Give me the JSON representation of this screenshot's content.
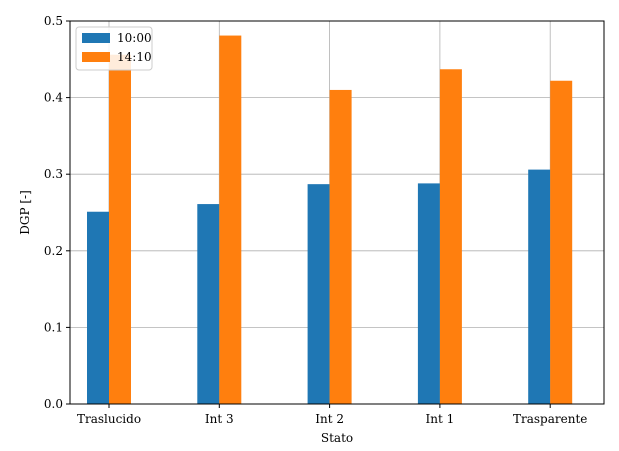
{
  "chart_data": {
    "type": "bar",
    "categories": [
      "Traslucido",
      "Int 3",
      "Int 2",
      "Int 1",
      "Trasparente"
    ],
    "series": [
      {
        "name": "10:00",
        "color": "#1f77b4",
        "values": [
          0.251,
          0.261,
          0.287,
          0.288,
          0.306
        ]
      },
      {
        "name": "14:10",
        "color": "#ff7f0e",
        "values": [
          0.456,
          0.481,
          0.41,
          0.437,
          0.422
        ]
      }
    ],
    "title": "",
    "xlabel": "Stato",
    "ylabel": "DGP [-]",
    "ylim": [
      0,
      0.5
    ],
    "yticks": [
      "0.0",
      "0.1",
      "0.2",
      "0.3",
      "0.4",
      "0.5"
    ],
    "grid": true,
    "legend_position": "top-left"
  }
}
